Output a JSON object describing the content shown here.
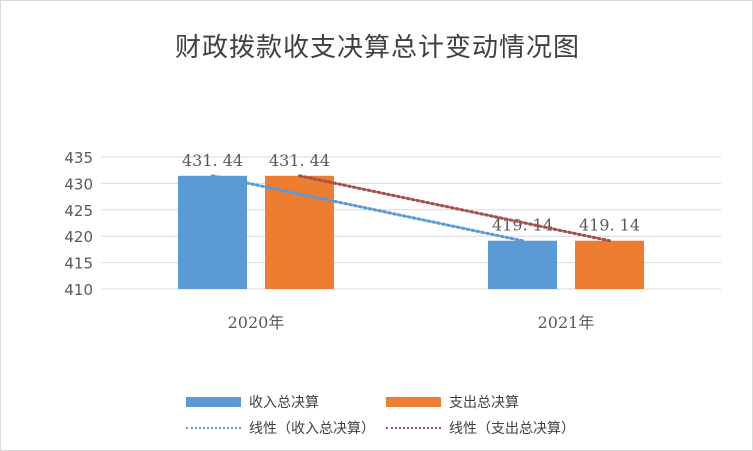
{
  "colors": {
    "income": "#5b9bd5",
    "expense": "#ed7d31",
    "income_trend": "#5b9bd5",
    "expense_trend": "#a5504a",
    "grid": "#d9d9d9",
    "text": "#595959"
  },
  "chart_data": {
    "type": "bar",
    "title": "财政拨款收支决算总计变动情况图",
    "categories": [
      "2020年",
      "2021年"
    ],
    "series": [
      {
        "name": "收入总决算",
        "values": [
          431.44,
          419.14
        ],
        "labels": [
          "431. 44",
          "419. 14"
        ]
      },
      {
        "name": "支出总决算",
        "values": [
          431.44,
          419.14
        ],
        "labels": [
          "431. 44",
          "419. 14"
        ]
      }
    ],
    "trendlines": [
      {
        "name": "线性（收入总决算）",
        "type": "linear",
        "series": "收入总决算"
      },
      {
        "name": "线性（支出总决算）",
        "type": "linear",
        "series": "支出总决算"
      }
    ],
    "ylim": [
      410,
      435
    ],
    "yticks": [
      410,
      415,
      420,
      425,
      430,
      435
    ],
    "grid": true,
    "legend_position": "bottom"
  }
}
